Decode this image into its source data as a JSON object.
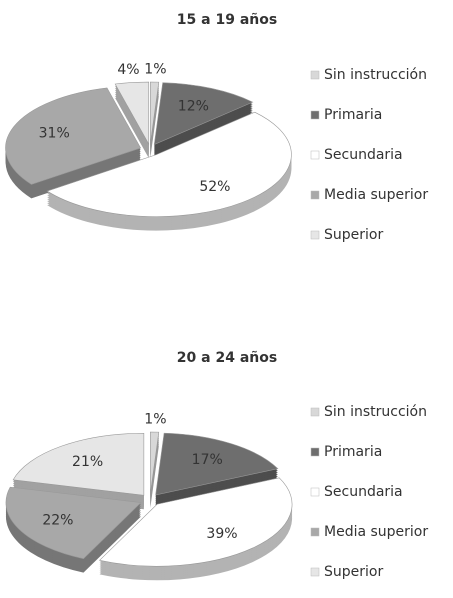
{
  "chart_data": [
    {
      "type": "pie",
      "title": "15 a 19 años",
      "categories": [
        "Sin instrucción",
        "Primaria",
        "Secundaria",
        "Media superior",
        "Superior"
      ],
      "values": [
        1,
        12,
        52,
        31,
        4
      ],
      "value_labels": [
        "1%",
        "12%",
        "52%",
        "31%",
        "4%"
      ],
      "colors": [
        "#d8d8d8",
        "#6e6e6e",
        "#ffffff",
        "#a8a8a8",
        "#e6e6e6"
      ]
    },
    {
      "type": "pie",
      "title": "20 a 24 años",
      "categories": [
        "Sin instrucción",
        "Primaria",
        "Secundaria",
        "Media superior",
        "Superior"
      ],
      "values": [
        1,
        17,
        39,
        22,
        21
      ],
      "value_labels": [
        "1%",
        "17%",
        "39%",
        "22%",
        "21%"
      ],
      "colors": [
        "#d8d8d8",
        "#6e6e6e",
        "#ffffff",
        "#a8a8a8",
        "#e6e6e6"
      ]
    }
  ]
}
